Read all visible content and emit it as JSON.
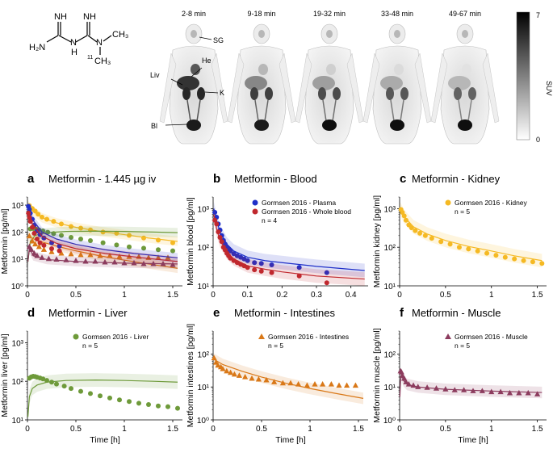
{
  "molecule": {
    "labels": {
      "nh1": "NH",
      "nh2": "NH",
      "h2n": "H₂N",
      "n_h": "N",
      "h": "H",
      "n_me": "N",
      "ch3": "CH₃",
      "isotope": "11",
      "ch3b": "CH₃"
    }
  },
  "pet": {
    "timepoints": [
      "2-8 min",
      "9-18 min",
      "19-32 min",
      "33-48 min",
      "49-67 min"
    ],
    "annotations": [
      "SG",
      "He",
      "Liv",
      "K",
      "Bl"
    ],
    "colorbar": {
      "label": "SUV",
      "max": "7",
      "min": "0"
    }
  },
  "colors": {
    "plasma": "#1f2fc8",
    "blood": "#c0282e",
    "kidney": "#f5b923",
    "liver": "#6e9a3a",
    "intestines": "#d97818",
    "muscle": "#8c3c5e"
  },
  "chart_data": [
    {
      "id": "a",
      "type": "scatter",
      "letter": "a",
      "title": "Metformin - 1.445 µg iv",
      "ylabel": "Metformin [pg/ml]",
      "xlabel": "",
      "xlim": [
        0,
        1.6
      ],
      "ylim": [
        1,
        2000
      ],
      "log": true,
      "xticks": [
        0,
        0.5,
        1,
        1.5
      ],
      "xticklabels": [
        "0",
        "0.5",
        "1",
        "1.5"
      ],
      "yticks": [
        1,
        10,
        100,
        1000
      ],
      "yticklabels": [
        "10⁰",
        "10¹",
        "10²",
        "10³"
      ],
      "series": [
        {
          "name": "Gormsen 2016 - Kidney",
          "color": "kidney",
          "marker": "circle",
          "x": [
            0.02,
            0.05,
            0.08,
            0.11,
            0.15,
            0.2,
            0.27,
            0.35,
            0.45,
            0.55,
            0.65,
            0.78,
            0.92,
            1.05,
            1.2,
            1.35,
            1.5
          ],
          "y": [
            950,
            750,
            600,
            460,
            360,
            300,
            250,
            200,
            160,
            140,
            120,
            100,
            90,
            75,
            60,
            50,
            40
          ],
          "fit": {
            "x": [
              0.005,
              0.05,
              0.15,
              0.3,
              0.5,
              0.75,
              1.0,
              1.25,
              1.55
            ],
            "y": [
              1000,
              620,
              340,
              220,
              150,
              105,
              80,
              60,
              45
            ]
          }
        },
        {
          "name": "Gormsen 2016 - Liver",
          "color": "liver",
          "marker": "circle",
          "x": [
            0.03,
            0.06,
            0.09,
            0.12,
            0.16,
            0.21,
            0.27,
            0.35,
            0.45,
            0.55,
            0.65,
            0.78,
            0.92,
            1.05,
            1.2,
            1.35,
            1.5
          ],
          "y": [
            130,
            135,
            128,
            120,
            110,
            98,
            88,
            75,
            63,
            55,
            48,
            40,
            33,
            28,
            25,
            22,
            20
          ],
          "fit": {
            "x": [
              0.005,
              0.03,
              0.08,
              0.2,
              0.4,
              0.7,
              1.0,
              1.3,
              1.55
            ],
            "y": [
              8,
              45,
              75,
              95,
              105,
              108,
              105,
              100,
              95
            ]
          }
        },
        {
          "name": "Gormsen 2016 - Intestines",
          "color": "intestines",
          "marker": "triangle",
          "x": [
            0.02,
            0.05,
            0.08,
            0.12,
            0.17,
            0.25,
            0.35,
            0.45,
            0.55,
            0.65,
            0.75,
            0.85,
            0.95,
            1.05,
            1.15,
            1.25,
            1.35,
            1.45
          ],
          "y": [
            70,
            45,
            35,
            28,
            22,
            18,
            16,
            15,
            14,
            14,
            13,
            13,
            12,
            12,
            12,
            11,
            11,
            11
          ],
          "fit": {
            "x": [
              0.005,
              0.1,
              0.3,
              0.5,
              0.75,
              1.0,
              1.25,
              1.55
            ],
            "y": [
              70,
              48,
              30,
              20,
              13,
              9,
              6.5,
              4.5
            ]
          }
        },
        {
          "name": "Gormsen 2016 - Plasma",
          "color": "plasma",
          "marker": "circle",
          "x": [
            0.01,
            0.02,
            0.03,
            0.05,
            0.07,
            0.1,
            0.13,
            0.17,
            0.25,
            0.33
          ],
          "y": [
            900,
            700,
            500,
            300,
            180,
            110,
            80,
            60,
            40,
            30
          ],
          "fit": {
            "x": [
              0.005,
              0.05,
              0.15,
              0.3,
              0.5,
              0.8,
              1.1,
              1.55
            ],
            "y": [
              900,
              300,
              100,
              55,
              35,
              22,
              16,
              11
            ]
          }
        },
        {
          "name": "Gormsen 2016 - Whole blood",
          "color": "blood",
          "marker": "circle",
          "x": [
            0.01,
            0.02,
            0.03,
            0.05,
            0.07,
            0.1,
            0.13,
            0.17,
            0.25,
            0.33
          ],
          "y": [
            500,
            350,
            250,
            150,
            90,
            55,
            40,
            32,
            24,
            20
          ],
          "fit": {
            "x": [
              0.005,
              0.05,
              0.15,
              0.3,
              0.5,
              0.8,
              1.1,
              1.55
            ],
            "y": [
              550,
              200,
              70,
              38,
              24,
              16,
              12,
              8
            ]
          }
        },
        {
          "name": "Gormsen 2016 - Muscle",
          "color": "muscle",
          "marker": "triangle",
          "x": [
            0.02,
            0.04,
            0.07,
            0.1,
            0.15,
            0.22,
            0.3,
            0.4,
            0.5,
            0.6,
            0.7,
            0.8,
            0.9,
            1.0,
            1.1,
            1.2,
            1.3,
            1.4,
            1.5
          ],
          "y": [
            28,
            22,
            16,
            13,
            11,
            10,
            9.5,
            9,
            8.5,
            8,
            8,
            7.5,
            7.5,
            7,
            7,
            6.5,
            6.5,
            6.5,
            6
          ],
          "fit": {
            "x": [
              0.005,
              0.02,
              0.06,
              0.2,
              0.5,
              1.0,
              1.55
            ],
            "y": [
              8,
              25,
              13,
              9.5,
              8,
              7,
              6.5
            ]
          }
        }
      ]
    },
    {
      "id": "b",
      "type": "scatter",
      "letter": "b",
      "title": "Metformin - Blood",
      "ylabel": "Metformin blood [pg/ml]",
      "xlabel": "",
      "xlim": [
        0,
        0.45
      ],
      "ylim": [
        10,
        2000
      ],
      "log": true,
      "xticks": [
        0,
        0.1,
        0.2,
        0.3,
        0.4
      ],
      "xticklabels": [
        "0",
        "0.1",
        "0.2",
        "0.3",
        "0.4"
      ],
      "yticks": [
        10,
        100,
        1000
      ],
      "yticklabels": [
        "10¹",
        "10²",
        "10³"
      ],
      "legend": [
        "Gormsen 2016 - Plasma",
        "Gormsen 2016 - Whole blood",
        "n = 4"
      ],
      "series": [
        {
          "name": "Gormsen 2016 - Plasma",
          "color": "plasma",
          "marker": "circle",
          "x": [
            0.005,
            0.01,
            0.015,
            0.02,
            0.025,
            0.03,
            0.035,
            0.04,
            0.045,
            0.05,
            0.06,
            0.07,
            0.08,
            0.09,
            0.1,
            0.12,
            0.14,
            0.17,
            0.25,
            0.33
          ],
          "y": [
            800,
            600,
            400,
            280,
            200,
            150,
            120,
            100,
            90,
            80,
            68,
            60,
            55,
            50,
            45,
            40,
            38,
            35,
            30,
            22
          ],
          "fit": {
            "x": [
              0.002,
              0.01,
              0.02,
              0.04,
              0.06,
              0.1,
              0.15,
              0.2,
              0.3,
              0.44
            ],
            "y": [
              1000,
              500,
              250,
              120,
              80,
              55,
              45,
              40,
              32,
              25
            ]
          }
        },
        {
          "name": "Gormsen 2016 - Whole blood",
          "color": "blood",
          "marker": "circle",
          "x": [
            0.005,
            0.01,
            0.015,
            0.02,
            0.025,
            0.03,
            0.035,
            0.04,
            0.045,
            0.05,
            0.06,
            0.07,
            0.08,
            0.09,
            0.1,
            0.12,
            0.14,
            0.17,
            0.25,
            0.33
          ],
          "y": [
            500,
            400,
            250,
            180,
            140,
            100,
            85,
            70,
            60,
            52,
            45,
            40,
            36,
            33,
            30,
            26,
            24,
            22,
            18,
            12
          ],
          "fit": {
            "x": [
              0.002,
              0.01,
              0.02,
              0.04,
              0.06,
              0.1,
              0.15,
              0.2,
              0.3,
              0.44
            ],
            "y": [
              700,
              300,
              150,
              75,
              50,
              33,
              27,
              23,
              18,
              15
            ]
          }
        }
      ]
    },
    {
      "id": "c",
      "type": "scatter",
      "letter": "c",
      "title": "Metformin - Kidney",
      "ylabel": "Metformin kidney [pg/ml]",
      "xlabel": "",
      "xlim": [
        0,
        1.6
      ],
      "ylim": [
        10,
        2000
      ],
      "log": true,
      "xticks": [
        0,
        0.5,
        1,
        1.5
      ],
      "xticklabels": [
        "0",
        "0.5",
        "1",
        "1.5"
      ],
      "yticks": [
        10,
        100,
        1000
      ],
      "yticklabels": [
        "10¹",
        "10²",
        "10³"
      ],
      "legend": [
        "Gormsen 2016 - Kidney",
        "n = 5"
      ],
      "series": [
        {
          "name": "Gormsen 2016 - Kidney",
          "color": "kidney",
          "marker": "circle",
          "x": [
            0.015,
            0.03,
            0.05,
            0.07,
            0.1,
            0.13,
            0.17,
            0.22,
            0.28,
            0.35,
            0.45,
            0.55,
            0.65,
            0.75,
            0.85,
            0.95,
            1.05,
            1.15,
            1.25,
            1.35,
            1.45,
            1.55
          ],
          "y": [
            950,
            800,
            650,
            500,
            380,
            320,
            270,
            230,
            200,
            170,
            140,
            120,
            100,
            90,
            80,
            70,
            62,
            55,
            50,
            45,
            42,
            38
          ],
          "fit": {
            "x": [
              0.005,
              0.05,
              0.15,
              0.3,
              0.5,
              0.75,
              1.0,
              1.25,
              1.55
            ],
            "y": [
              1000,
              620,
              340,
              220,
              150,
              105,
              80,
              60,
              45
            ]
          }
        }
      ]
    },
    {
      "id": "d",
      "type": "scatter",
      "letter": "d",
      "title": "Metformin - Liver",
      "ylabel": "Metformin liver [pg/ml]",
      "xlabel": "Time [h]",
      "xlim": [
        0,
        1.6
      ],
      "ylim": [
        10,
        2000
      ],
      "log": true,
      "xticks": [
        0,
        0.5,
        1,
        1.5
      ],
      "xticklabels": [
        "0",
        "0.5",
        "1",
        "1.5"
      ],
      "yticks": [
        10,
        100,
        1000
      ],
      "yticklabels": [
        "10¹",
        "10²",
        "10³"
      ],
      "legend": [
        "Gormsen 2016 - Liver",
        "n = 5"
      ],
      "series": [
        {
          "name": "Gormsen 2016 - Liver",
          "color": "liver",
          "marker": "circle",
          "x": [
            0.02,
            0.04,
            0.06,
            0.08,
            0.1,
            0.13,
            0.16,
            0.2,
            0.25,
            0.3,
            0.38,
            0.45,
            0.55,
            0.65,
            0.75,
            0.85,
            0.95,
            1.05,
            1.15,
            1.25,
            1.35,
            1.45,
            1.55
          ],
          "y": [
            120,
            130,
            135,
            132,
            128,
            122,
            115,
            105,
            95,
            85,
            75,
            65,
            55,
            48,
            42,
            37,
            33,
            30,
            27,
            25,
            23,
            22,
            20
          ],
          "fit": {
            "x": [
              0.005,
              0.02,
              0.05,
              0.1,
              0.2,
              0.4,
              0.7,
              1.0,
              1.3,
              1.55
            ],
            "y": [
              12,
              40,
              65,
              80,
              95,
              105,
              108,
              105,
              100,
              95
            ]
          }
        }
      ]
    },
    {
      "id": "e",
      "type": "scatter",
      "letter": "e",
      "title": "Metformin - Intestines",
      "ylabel": "Metformin intestines [pg/ml]",
      "xlabel": "Time [h]",
      "xlim": [
        0,
        1.6
      ],
      "ylim": [
        1,
        500
      ],
      "log": true,
      "xticks": [
        0,
        0.5,
        1,
        1.5
      ],
      "xticklabels": [
        "0",
        "0.5",
        "1",
        "1.5"
      ],
      "yticks": [
        1,
        10,
        100
      ],
      "yticklabels": [
        "10⁰",
        "10¹",
        "10²"
      ],
      "legend": [
        "Gormsen 2016 - Intestines",
        "n = 5"
      ],
      "series": [
        {
          "name": "Gormsen 2016 - Intestines",
          "color": "intestines",
          "marker": "triangle",
          "x": [
            0.01,
            0.03,
            0.05,
            0.08,
            0.1,
            0.14,
            0.18,
            0.22,
            0.27,
            0.33,
            0.4,
            0.47,
            0.55,
            0.63,
            0.72,
            0.8,
            0.88,
            0.97,
            1.05,
            1.13,
            1.22,
            1.3,
            1.38,
            1.47
          ],
          "y": [
            75,
            55,
            45,
            40,
            35,
            30,
            27,
            24,
            22,
            20,
            18,
            17,
            16,
            14,
            13,
            13,
            12,
            11,
            12,
            12,
            12,
            11,
            11,
            11
          ],
          "fit": {
            "x": [
              0.005,
              0.1,
              0.3,
              0.5,
              0.75,
              1.0,
              1.25,
              1.55
            ],
            "y": [
              70,
              48,
              30,
              20,
              13,
              9,
              6.5,
              4.5
            ]
          }
        }
      ]
    },
    {
      "id": "f",
      "type": "scatter",
      "letter": "f",
      "title": "Metformin - Muscle",
      "ylabel": "Metformin muscle [pg/ml]",
      "xlabel": "Time [h]",
      "xlim": [
        0,
        1.6
      ],
      "ylim": [
        1,
        500
      ],
      "log": true,
      "xticks": [
        0,
        0.5,
        1,
        1.5
      ],
      "xticklabels": [
        "0",
        "0.5",
        "1",
        "1.5"
      ],
      "yticks": [
        1,
        10,
        100
      ],
      "yticklabels": [
        "10⁰",
        "10¹",
        "10²"
      ],
      "legend": [
        "Gormsen 2016 - Muscle",
        "n = 5"
      ],
      "series": [
        {
          "name": "Gormsen 2016 - Muscle",
          "color": "muscle",
          "marker": "triangle",
          "x": [
            0.01,
            0.02,
            0.03,
            0.05,
            0.07,
            0.1,
            0.15,
            0.2,
            0.3,
            0.4,
            0.5,
            0.6,
            0.7,
            0.8,
            0.9,
            1.0,
            1.1,
            1.2,
            1.3,
            1.4,
            1.5
          ],
          "y": [
            30,
            28,
            22,
            18,
            14,
            12,
            11,
            10,
            9.5,
            9,
            8.5,
            8,
            8,
            7.5,
            7.5,
            7,
            7,
            6.5,
            6.5,
            6.5,
            6
          ],
          "fit": {
            "x": [
              0.003,
              0.01,
              0.02,
              0.04,
              0.08,
              0.2,
              0.5,
              1.0,
              1.55
            ],
            "y": [
              5,
              15,
              25,
              16,
              12,
              10,
              8.5,
              7.5,
              6.8
            ]
          }
        }
      ]
    }
  ]
}
